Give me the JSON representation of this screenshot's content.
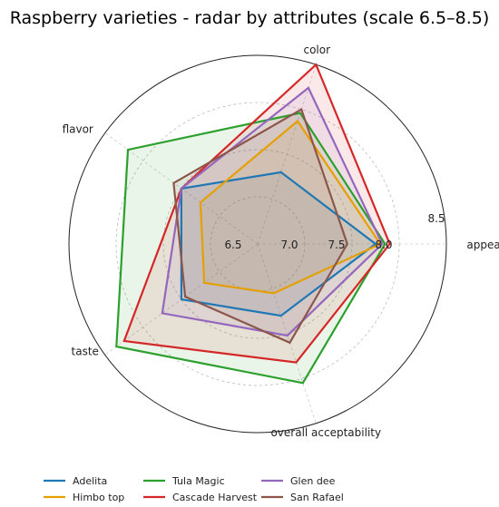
{
  "chart_data": {
    "type": "radar",
    "title": "Raspberry varieties - radar by attributes (scale 6.5–8.5)",
    "axes": [
      "appearance",
      "color",
      "flavor",
      "taste",
      "overall acceptability"
    ],
    "rlim": [
      6.5,
      8.5
    ],
    "rticks": [
      "6.5",
      "7.0",
      "7.5",
      "8.0",
      "8.5"
    ],
    "grid": true,
    "legend_position": "bottom",
    "series": [
      {
        "name": "Adelita",
        "color": "#1f77b4",
        "values": [
          7.75,
          7.3,
          7.5,
          7.5,
          7.3
        ]
      },
      {
        "name": "Himbo top",
        "color": "#e69f00",
        "values": [
          7.8,
          7.87,
          7.25,
          7.2,
          7.05
        ]
      },
      {
        "name": "Tula Magic",
        "color": "#2ca02c",
        "values": [
          7.85,
          7.96,
          8.2,
          8.35,
          8.05
        ]
      },
      {
        "name": "Cascade Harvest",
        "color": "#d62728",
        "values": [
          7.9,
          8.5,
          7.5,
          8.25,
          7.82
        ]
      },
      {
        "name": "Glen dee",
        "color": "#9467bd",
        "values": [
          7.82,
          8.24,
          7.5,
          7.75,
          7.52
        ]
      },
      {
        "name": "San Rafael",
        "color": "#8c564b",
        "values": [
          7.45,
          8.0,
          7.6,
          7.45,
          7.6
        ]
      }
    ]
  }
}
